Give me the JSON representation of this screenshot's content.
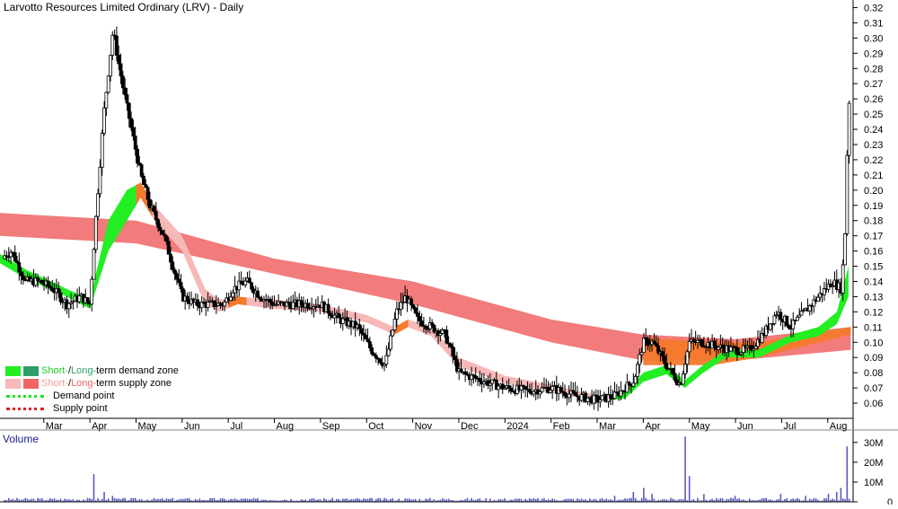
{
  "chart_data": {
    "type": "candlestick",
    "title": "Larvotto Resources Limited Ordinary (LRV) - Daily",
    "price_axis": {
      "ylim": [
        0.05,
        0.325
      ],
      "ticks": [
        "0.32",
        "0.31",
        "0.30",
        "0.29",
        "0.28",
        "0.27",
        "0.26",
        "0.25",
        "0.24",
        "0.23",
        "0.22",
        "0.21",
        "0.20",
        "0.19",
        "0.18",
        "0.17",
        "0.16",
        "0.15",
        "0.14",
        "0.13",
        "0.12",
        "0.11",
        "0.10",
        "0.09",
        "0.08",
        "0.07",
        "0.06"
      ]
    },
    "x_axis": {
      "labels": [
        "Mar",
        "Apr",
        "May",
        "Jun",
        "Jul",
        "Aug",
        "Sep",
        "Oct",
        "Nov",
        "Dec",
        "2024",
        "Feb",
        "Mar",
        "Apr",
        "May",
        "Jun",
        "Jul",
        "Aug"
      ],
      "positions": [
        0.0,
        1.0,
        2.0,
        3.0,
        4.0,
        5.0,
        6.0,
        7.0,
        8.0,
        9.0,
        10.0,
        11.0,
        12.0,
        13.0,
        14.0,
        15.0,
        16.0,
        17.0
      ],
      "range": [
        -0.95,
        17.55
      ]
    },
    "price_keypoints": [
      [
        -0.95,
        0.155
      ],
      [
        -0.7,
        0.16
      ],
      [
        -0.4,
        0.14
      ],
      [
        -0.1,
        0.14
      ],
      [
        0.2,
        0.135
      ],
      [
        0.5,
        0.125
      ],
      [
        0.8,
        0.13
      ],
      [
        1.0,
        0.125
      ],
      [
        1.1,
        0.17
      ],
      [
        1.3,
        0.25
      ],
      [
        1.5,
        0.305
      ],
      [
        1.7,
        0.27
      ],
      [
        1.9,
        0.24
      ],
      [
        2.1,
        0.21
      ],
      [
        2.3,
        0.19
      ],
      [
        2.6,
        0.17
      ],
      [
        3.0,
        0.13
      ],
      [
        3.3,
        0.125
      ],
      [
        3.6,
        0.125
      ],
      [
        3.9,
        0.125
      ],
      [
        4.1,
        0.135
      ],
      [
        4.4,
        0.14
      ],
      [
        4.7,
        0.13
      ],
      [
        5.0,
        0.125
      ],
      [
        5.5,
        0.125
      ],
      [
        6.0,
        0.125
      ],
      [
        6.4,
        0.115
      ],
      [
        6.8,
        0.11
      ],
      [
        7.1,
        0.095
      ],
      [
        7.4,
        0.085
      ],
      [
        7.65,
        0.12
      ],
      [
        7.85,
        0.13
      ],
      [
        8.1,
        0.115
      ],
      [
        8.4,
        0.11
      ],
      [
        8.7,
        0.105
      ],
      [
        9.0,
        0.08
      ],
      [
        9.5,
        0.075
      ],
      [
        10.0,
        0.07
      ],
      [
        10.5,
        0.068
      ],
      [
        11.0,
        0.07
      ],
      [
        11.5,
        0.065
      ],
      [
        12.0,
        0.062
      ],
      [
        12.4,
        0.065
      ],
      [
        12.8,
        0.075
      ],
      [
        13.0,
        0.1
      ],
      [
        13.2,
        0.1
      ],
      [
        13.5,
        0.085
      ],
      [
        13.8,
        0.072
      ],
      [
        14.0,
        0.1
      ],
      [
        14.3,
        0.1
      ],
      [
        14.6,
        0.097
      ],
      [
        15.0,
        0.095
      ],
      [
        15.3,
        0.095
      ],
      [
        15.6,
        0.105
      ],
      [
        15.9,
        0.12
      ],
      [
        16.2,
        0.11
      ],
      [
        16.5,
        0.12
      ],
      [
        16.8,
        0.13
      ],
      [
        17.1,
        0.14
      ],
      [
        17.3,
        0.135
      ],
      [
        17.38,
        0.175
      ],
      [
        17.45,
        0.26
      ],
      [
        17.5,
        0.255
      ]
    ],
    "long_term_supply_zone": {
      "upper": [
        [
          -0.95,
          0.185
        ],
        [
          2.0,
          0.18
        ],
        [
          5.0,
          0.155
        ],
        [
          8.0,
          0.14
        ],
        [
          11.0,
          0.115
        ],
        [
          13.0,
          0.105
        ],
        [
          15.0,
          0.102
        ],
        [
          17.5,
          0.11
        ]
      ],
      "lower": [
        [
          -0.95,
          0.17
        ],
        [
          2.0,
          0.165
        ],
        [
          5.0,
          0.145
        ],
        [
          8.0,
          0.125
        ],
        [
          11.0,
          0.1
        ],
        [
          13.0,
          0.088
        ],
        [
          15.0,
          0.088
        ],
        [
          17.5,
          0.095
        ]
      ]
    },
    "long_term_demand_zone": {
      "upper": [
        [
          13.0,
          0.103
        ],
        [
          14.5,
          0.1
        ],
        [
          15.5,
          0.1
        ],
        [
          17.5,
          0.11
        ]
      ],
      "lower": [
        [
          13.0,
          0.085
        ],
        [
          14.5,
          0.085
        ],
        [
          15.5,
          0.09
        ],
        [
          17.5,
          0.105
        ]
      ]
    },
    "short_term_zone": {
      "upper": [
        [
          -0.95,
          0.158
        ],
        [
          -0.4,
          0.148
        ],
        [
          0.5,
          0.135
        ],
        [
          1.0,
          0.128
        ],
        [
          1.4,
          0.18
        ],
        [
          1.8,
          0.2
        ],
        [
          2.1,
          0.205
        ],
        [
          2.4,
          0.19
        ],
        [
          3.0,
          0.17
        ],
        [
          3.5,
          0.135
        ],
        [
          3.8,
          0.128
        ],
        [
          4.2,
          0.13
        ],
        [
          5.0,
          0.128
        ],
        [
          6.0,
          0.125
        ],
        [
          7.0,
          0.118
        ],
        [
          7.6,
          0.11
        ],
        [
          7.9,
          0.115
        ],
        [
          8.4,
          0.11
        ],
        [
          9.0,
          0.09
        ],
        [
          10.0,
          0.078
        ],
        [
          11.0,
          0.072
        ],
        [
          12.0,
          0.065
        ],
        [
          12.6,
          0.067
        ],
        [
          13.0,
          0.08
        ],
        [
          13.5,
          0.085
        ],
        [
          13.9,
          0.075
        ],
        [
          14.3,
          0.085
        ],
        [
          14.8,
          0.095
        ],
        [
          15.5,
          0.095
        ],
        [
          16.2,
          0.105
        ],
        [
          16.8,
          0.11
        ],
        [
          17.2,
          0.12
        ],
        [
          17.45,
          0.15
        ]
      ],
      "lower": [
        [
          -0.95,
          0.152
        ],
        [
          -0.4,
          0.142
        ],
        [
          0.5,
          0.13
        ],
        [
          1.0,
          0.122
        ],
        [
          1.4,
          0.16
        ],
        [
          1.8,
          0.18
        ],
        [
          2.1,
          0.195
        ],
        [
          2.4,
          0.18
        ],
        [
          3.0,
          0.16
        ],
        [
          3.5,
          0.125
        ],
        [
          3.8,
          0.12
        ],
        [
          4.2,
          0.125
        ],
        [
          5.0,
          0.122
        ],
        [
          6.0,
          0.12
        ],
        [
          7.0,
          0.113
        ],
        [
          7.6,
          0.105
        ],
        [
          7.9,
          0.11
        ],
        [
          8.4,
          0.104
        ],
        [
          9.0,
          0.084
        ],
        [
          10.0,
          0.073
        ],
        [
          11.0,
          0.067
        ],
        [
          12.0,
          0.061
        ],
        [
          12.6,
          0.063
        ],
        [
          13.0,
          0.074
        ],
        [
          13.5,
          0.079
        ],
        [
          13.9,
          0.07
        ],
        [
          14.3,
          0.08
        ],
        [
          14.8,
          0.09
        ],
        [
          15.5,
          0.09
        ],
        [
          16.2,
          0.1
        ],
        [
          16.8,
          0.104
        ],
        [
          17.2,
          0.112
        ],
        [
          17.45,
          0.13
        ]
      ]
    },
    "volume": {
      "title": "Volume",
      "ylim": [
        0,
        34
      ],
      "ticks": [
        "30M",
        "20M",
        "10M",
        "0"
      ],
      "tick_values": [
        30,
        20,
        10,
        0
      ],
      "unit": "M",
      "spikes": [
        [
          1.1,
          14
        ],
        [
          1.3,
          5
        ],
        [
          1.5,
          3
        ],
        [
          12.4,
          3
        ],
        [
          12.8,
          5
        ],
        [
          13.0,
          7
        ],
        [
          13.2,
          4
        ],
        [
          13.9,
          33
        ],
        [
          14.0,
          13
        ],
        [
          14.3,
          4
        ],
        [
          15.0,
          3
        ],
        [
          16.0,
          4
        ],
        [
          16.5,
          3
        ],
        [
          17.0,
          4
        ],
        [
          17.2,
          5
        ],
        [
          17.3,
          7
        ],
        [
          17.42,
          28
        ],
        [
          17.5,
          16
        ]
      ]
    },
    "colors": {
      "demand_short": "#22ee22",
      "demand_long": "#2e9e6a",
      "supply_short": "#f7b8b8",
      "supply_long": "#f06464",
      "supply_mixed": "#f47a2c",
      "demand_point": "#22dd22",
      "supply_point": "#dd2222",
      "volume_bar": "#5a5abf",
      "volume_title": "#1a1a8c"
    },
    "legend": {
      "placement": "bottom-left",
      "zone_short_demand": "Short-",
      "zone_sep": " / ",
      "zone_long_demand": "Long-",
      "zone_demand_rest": "term demand zone",
      "zone_short_supply": "Short-",
      "zone_long_supply": "Long-",
      "zone_supply_rest": "term supply zone",
      "demand_point": "Demand point",
      "supply_point": "Supply point"
    }
  }
}
